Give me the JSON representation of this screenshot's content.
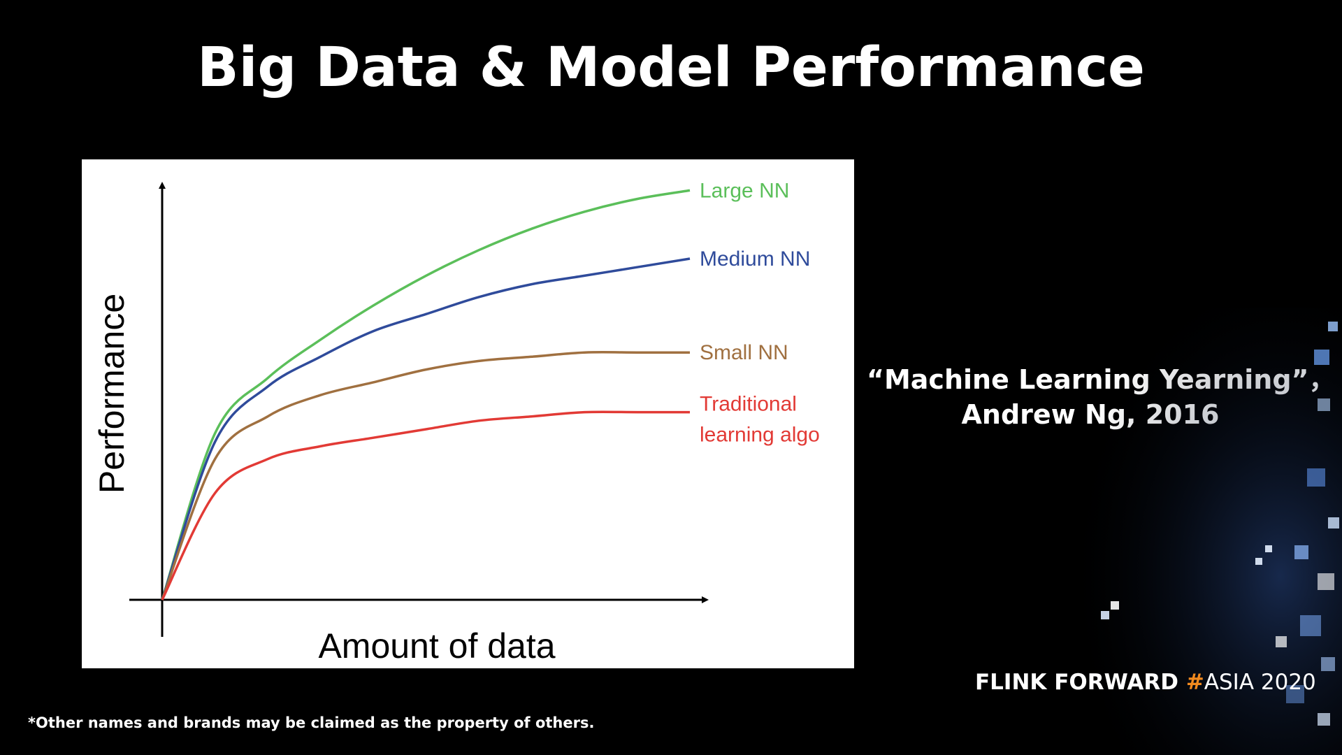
{
  "slide": {
    "title": "Big Data & Model Performance",
    "citation_line1": "“Machine Learning Yearning”，",
    "citation_line2": "Andrew Ng, 2016",
    "footnote": "*Other names and brands may be claimed as the property of others.",
    "brand": {
      "part1": "FLINK  FORWARD ",
      "hash": "#",
      "part2": "ASIA 2020",
      "hash_color": "#f28a1e"
    }
  },
  "chart_data": {
    "type": "line",
    "xlabel": "Amount of data",
    "ylabel": "Performance",
    "xlim": [
      0,
      1
    ],
    "ylim": [
      0,
      1
    ],
    "axis_ticks": false,
    "grid": false,
    "legend": "inline labels at right end of curves",
    "series": [
      {
        "name": "Large NN",
        "color": "#5bbf5a",
        "label_lines": [
          "Large NN"
        ],
        "x": [
          0,
          0.1,
          0.2,
          0.3,
          0.4,
          0.5,
          0.6,
          0.7,
          0.8,
          0.9,
          1.0
        ],
        "y": [
          0,
          0.39,
          0.52,
          0.61,
          0.69,
          0.76,
          0.82,
          0.87,
          0.91,
          0.94,
          0.96
        ]
      },
      {
        "name": "Medium NN",
        "color": "#2f4b9b",
        "label_lines": [
          "Medium NN"
        ],
        "x": [
          0,
          0.1,
          0.2,
          0.3,
          0.4,
          0.5,
          0.6,
          0.7,
          0.8,
          0.9,
          1.0
        ],
        "y": [
          0,
          0.37,
          0.5,
          0.57,
          0.63,
          0.67,
          0.71,
          0.74,
          0.76,
          0.78,
          0.8
        ]
      },
      {
        "name": "Small NN",
        "color": "#a07040",
        "label_lines": [
          "Small NN"
        ],
        "x": [
          0,
          0.1,
          0.2,
          0.3,
          0.4,
          0.5,
          0.6,
          0.7,
          0.8,
          0.9,
          1.0
        ],
        "y": [
          0,
          0.33,
          0.43,
          0.48,
          0.51,
          0.54,
          0.56,
          0.57,
          0.58,
          0.58,
          0.58
        ]
      },
      {
        "name": "Traditional learning algo",
        "color": "#e23a35",
        "label_lines": [
          "Traditional",
          "learning algo"
        ],
        "x": [
          0,
          0.1,
          0.2,
          0.3,
          0.4,
          0.5,
          0.6,
          0.7,
          0.8,
          0.9,
          1.0
        ],
        "y": [
          0,
          0.25,
          0.33,
          0.36,
          0.38,
          0.4,
          0.42,
          0.43,
          0.44,
          0.44,
          0.44
        ]
      }
    ]
  }
}
